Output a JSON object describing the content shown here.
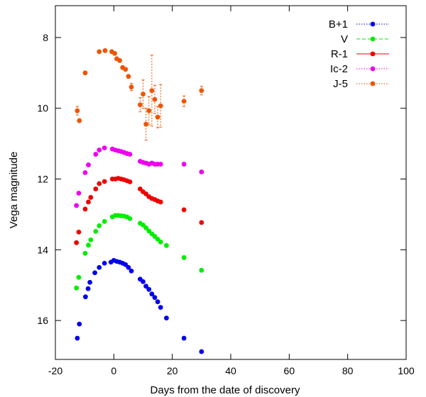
{
  "chart_data": {
    "type": "scatter",
    "xlabel": "Days from the date of discovery",
    "ylabel": "Vega magnitude",
    "xlim": [
      -20,
      100
    ],
    "ylim": [
      17.1,
      7.1
    ],
    "y_inverted": true,
    "x_ticks": [
      -20,
      0,
      20,
      40,
      60,
      80,
      100
    ],
    "y_ticks": [
      8,
      10,
      12,
      14,
      16
    ],
    "grid": false,
    "legend_position": "top-right",
    "series": [
      {
        "name": "B+1",
        "color": "#0000ee",
        "line_style": "dotted",
        "points": [
          [
            -12.5,
            16.5
          ],
          [
            -11.8,
            16.1
          ],
          [
            -9.7,
            15.33
          ],
          [
            -8.8,
            15.1
          ],
          [
            -8.2,
            14.92
          ],
          [
            -6.5,
            14.65
          ],
          [
            -5.0,
            14.5
          ],
          [
            -3.2,
            14.38
          ],
          [
            -1.0,
            14.35
          ],
          [
            0.0,
            14.3
          ],
          [
            1.0,
            14.33
          ],
          [
            2.0,
            14.35
          ],
          [
            3.0,
            14.38
          ],
          [
            4.0,
            14.42
          ],
          [
            5.0,
            14.5
          ],
          [
            6.0,
            14.6
          ],
          [
            9.0,
            14.83
          ],
          [
            10.0,
            14.9
          ],
          [
            11.0,
            15.03
          ],
          [
            12.0,
            15.12
          ],
          [
            13.0,
            15.25
          ],
          [
            14.0,
            15.35
          ],
          [
            15.0,
            15.47
          ],
          [
            16.0,
            15.63
          ],
          [
            18.0,
            15.93
          ],
          [
            24.0,
            16.5
          ],
          [
            30.0,
            16.88
          ]
        ]
      },
      {
        "name": "V",
        "color": "#00ee00",
        "line_style": "dashed",
        "points": [
          [
            -12.8,
            15.08
          ],
          [
            -12.0,
            14.78
          ],
          [
            -9.8,
            14.1
          ],
          [
            -8.7,
            13.87
          ],
          [
            -7.9,
            13.72
          ],
          [
            -6.2,
            13.48
          ],
          [
            -5.0,
            13.32
          ],
          [
            -3.2,
            13.2
          ],
          [
            -0.5,
            13.07
          ],
          [
            0.5,
            13.03
          ],
          [
            1.5,
            13.03
          ],
          [
            2.5,
            13.04
          ],
          [
            3.5,
            13.05
          ],
          [
            4.5,
            13.07
          ],
          [
            5.5,
            13.12
          ],
          [
            9.0,
            13.25
          ],
          [
            10.0,
            13.3
          ],
          [
            11.0,
            13.38
          ],
          [
            12.0,
            13.47
          ],
          [
            13.0,
            13.55
          ],
          [
            14.0,
            13.62
          ],
          [
            15.0,
            13.7
          ],
          [
            16.0,
            13.78
          ],
          [
            18.0,
            13.88
          ],
          [
            24.0,
            14.22
          ],
          [
            30.0,
            14.58
          ]
        ]
      },
      {
        "name": "R-1",
        "color": "#ee0000",
        "line_style": "solid",
        "points": [
          [
            -12.8,
            13.8
          ],
          [
            -12.0,
            13.5
          ],
          [
            -9.8,
            12.85
          ],
          [
            -8.7,
            12.65
          ],
          [
            -7.9,
            12.52
          ],
          [
            -6.2,
            12.28
          ],
          [
            -5.0,
            12.13
          ],
          [
            -3.2,
            12.07
          ],
          [
            -0.5,
            12.0
          ],
          [
            0.5,
            12.0
          ],
          [
            1.5,
            11.98
          ],
          [
            2.5,
            12.0
          ],
          [
            3.5,
            12.02
          ],
          [
            4.5,
            12.05
          ],
          [
            5.5,
            12.08
          ],
          [
            9.0,
            12.28
          ],
          [
            10.0,
            12.36
          ],
          [
            11.0,
            12.42
          ],
          [
            12.0,
            12.5
          ],
          [
            13.0,
            12.55
          ],
          [
            14.0,
            12.58
          ],
          [
            15.0,
            12.62
          ],
          [
            16.0,
            12.65
          ],
          [
            24.0,
            12.87
          ],
          [
            30.0,
            13.23
          ]
        ]
      },
      {
        "name": "Ic-2",
        "color": "#ee00ee",
        "line_style": "dotted",
        "points": [
          [
            -12.8,
            12.75
          ],
          [
            -12.0,
            12.4
          ],
          [
            -9.8,
            11.82
          ],
          [
            -8.7,
            11.6
          ],
          [
            -6.2,
            11.3
          ],
          [
            -5.0,
            11.18
          ],
          [
            -3.2,
            11.12
          ],
          [
            -0.5,
            11.15
          ],
          [
            0.5,
            11.18
          ],
          [
            1.5,
            11.2
          ],
          [
            2.5,
            11.22
          ],
          [
            3.5,
            11.25
          ],
          [
            4.5,
            11.28
          ],
          [
            5.5,
            11.3
          ],
          [
            9.0,
            11.5
          ],
          [
            10.0,
            11.53
          ],
          [
            11.0,
            11.55
          ],
          [
            12.0,
            11.58
          ],
          [
            13.0,
            11.55
          ],
          [
            14.0,
            11.58
          ],
          [
            15.0,
            11.58
          ],
          [
            16.0,
            11.58
          ],
          [
            24.0,
            11.58
          ],
          [
            30.0,
            11.8
          ]
        ]
      },
      {
        "name": "J-5",
        "color": "#ee5500",
        "line_style": "dotted",
        "points": [
          [
            -12.5,
            10.07,
            0.12
          ],
          [
            -11.8,
            10.35,
            0.05
          ],
          [
            -9.8,
            9.0,
            0.05
          ],
          [
            -5.0,
            8.4,
            0.05
          ],
          [
            -3.0,
            8.37,
            0.05
          ],
          [
            -0.7,
            8.4,
            0.05
          ],
          [
            0.3,
            8.45,
            0.05
          ],
          [
            1.0,
            8.6,
            0.05
          ],
          [
            2.0,
            8.65,
            0.05
          ],
          [
            3.0,
            8.85,
            0.05
          ],
          [
            4.0,
            8.9,
            0.05
          ],
          [
            5.0,
            9.1,
            0.05
          ],
          [
            6.0,
            9.4,
            0.1
          ],
          [
            9.0,
            9.9,
            0.2
          ],
          [
            10.0,
            9.6,
            0.4
          ],
          [
            11.0,
            10.45,
            0.45
          ],
          [
            12.0,
            10.07,
            0.4
          ],
          [
            13.0,
            9.5,
            1.0
          ],
          [
            14.0,
            9.75,
            0.4
          ],
          [
            15.0,
            10.25,
            0.3
          ],
          [
            16.0,
            9.93,
            0.6
          ],
          [
            24.0,
            9.8,
            0.15
          ],
          [
            30.0,
            9.5,
            0.12
          ]
        ]
      }
    ]
  }
}
